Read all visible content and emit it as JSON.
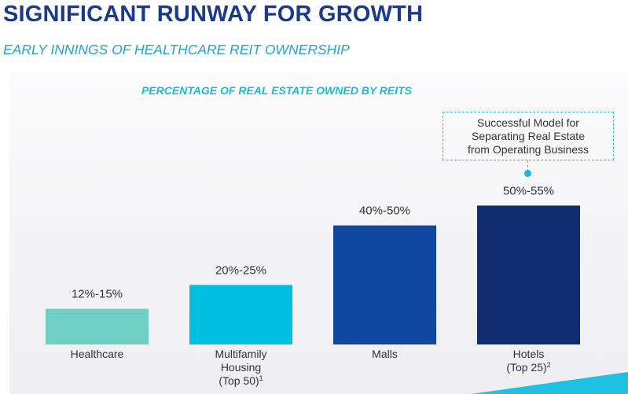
{
  "header": {
    "title": "SIGNIFICANT RUNWAY FOR GROWTH",
    "subtitle": "EARLY INNINGS OF HEALTHCARE REIT OWNERSHIP"
  },
  "callout": {
    "text": "Successful Model for\nSeparating Real Estate\nfrom Operating Business"
  },
  "chart_data": {
    "type": "bar",
    "title": "PERCENTAGE OF REAL ESTATE OWNED BY REITS",
    "categories": [
      "Healthcare",
      "Multifamily Housing (Top 50)¹",
      "Malls",
      "Hotels (Top 25)²"
    ],
    "category_lines": [
      [
        "Healthcare"
      ],
      [
        "Multifamily",
        "Housing",
        "(Top 50)",
        "1"
      ],
      [
        "Malls"
      ],
      [
        "Hotels",
        "(Top 25)",
        "2"
      ]
    ],
    "ranges": [
      [
        12,
        15
      ],
      [
        20,
        25
      ],
      [
        40,
        50
      ],
      [
        50,
        55
      ]
    ],
    "values": [
      13.5,
      22.5,
      45,
      52.5
    ],
    "data_labels": [
      "12%-15%",
      "20%-25%",
      "40%-50%",
      "50%-55%"
    ],
    "colors": [
      "#6fcfc2",
      "#00bfe0",
      "#0f47a1",
      "#0f2d6e"
    ],
    "ylim": [
      0,
      55
    ],
    "grid": false,
    "legend": "none"
  }
}
